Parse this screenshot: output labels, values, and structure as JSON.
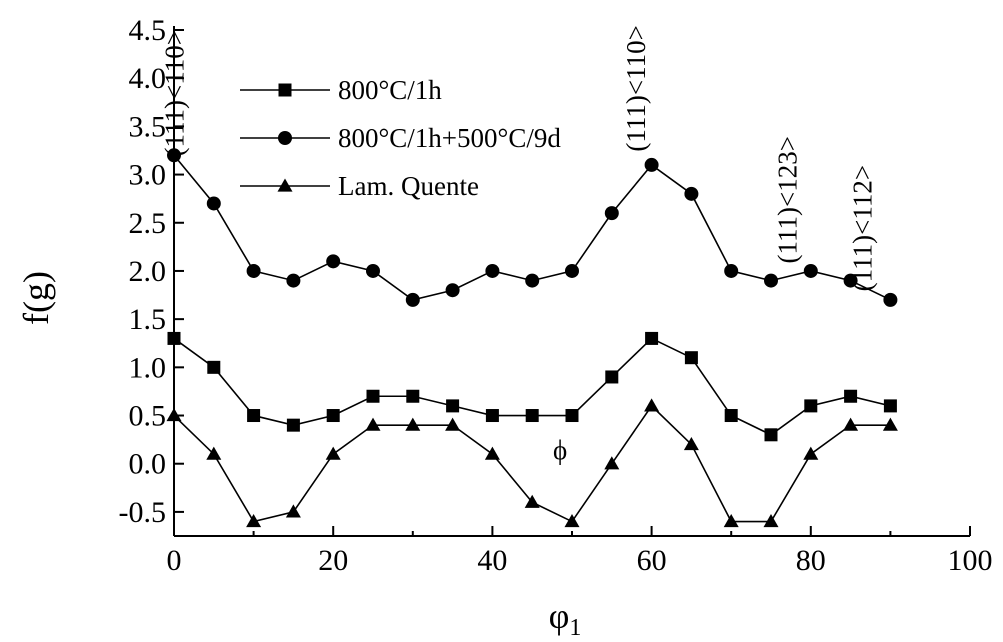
{
  "chart_data": {
    "type": "line",
    "xlabel": "φ",
    "xlabel_sub": "1",
    "ylabel": "f(g)",
    "xlim": [
      0,
      100
    ],
    "ylim": [
      -0.75,
      4.5
    ],
    "xticks": [
      0,
      20,
      40,
      60,
      80,
      100
    ],
    "xtick_labels": [
      "0",
      "20",
      "40",
      "60",
      "80",
      "100"
    ],
    "yticks": [
      -0.5,
      0.0,
      0.5,
      1.0,
      1.5,
      2.0,
      2.5,
      3.0,
      3.5,
      4.0,
      4.5
    ],
    "ytick_labels": [
      "-0.5",
      "0.0",
      "0.5",
      "1.0",
      "1.5",
      "2.0",
      "2.5",
      "3.0",
      "3.5",
      "4.0",
      "4.5"
    ],
    "grid": false,
    "legend_position": "top-left",
    "series": [
      {
        "name": "800°C/1h",
        "marker": "square",
        "x": [
          0,
          5,
          10,
          15,
          20,
          25,
          30,
          35,
          40,
          45,
          50,
          55,
          60,
          65,
          70,
          75,
          80,
          85,
          90
        ],
        "y": [
          1.3,
          1.0,
          0.5,
          0.4,
          0.5,
          0.7,
          0.7,
          0.6,
          0.5,
          0.5,
          0.5,
          0.9,
          1.3,
          1.1,
          0.5,
          0.3,
          0.6,
          0.7,
          0.6
        ]
      },
      {
        "name": "800°C/1h+500°C/9d",
        "marker": "circle",
        "x": [
          0,
          5,
          10,
          15,
          20,
          25,
          30,
          35,
          40,
          45,
          50,
          55,
          60,
          65,
          70,
          75,
          80,
          85,
          90
        ],
        "y": [
          3.2,
          2.7,
          2.0,
          1.9,
          2.1,
          2.0,
          1.7,
          1.8,
          2.0,
          1.9,
          2.0,
          2.6,
          3.1,
          2.8,
          2.0,
          1.9,
          2.0,
          1.9,
          1.7
        ]
      },
      {
        "name": "Lam. Quente",
        "marker": "triangle",
        "x": [
          0,
          5,
          10,
          15,
          20,
          25,
          30,
          35,
          40,
          45,
          50,
          55,
          60,
          65,
          70,
          75,
          80,
          85,
          90
        ],
        "y": [
          0.5,
          0.1,
          -0.6,
          -0.5,
          0.1,
          0.4,
          0.4,
          0.4,
          0.1,
          -0.4,
          -0.6,
          0.0,
          0.6,
          0.2,
          -0.6,
          -0.6,
          0.1,
          0.4,
          0.4
        ]
      }
    ],
    "annotations": [
      {
        "text": "(111)<110>",
        "x": 1.2,
        "y": 4.5
      },
      {
        "text": "(111)<110>",
        "x": 59.2,
        "y": 4.55
      },
      {
        "text": "(111)<123>",
        "x": 78.2,
        "y": 3.4
      },
      {
        "text": "(111)<112>",
        "x": 87.6,
        "y": 3.1
      },
      {
        "text": "ϕ",
        "x": 48.5,
        "y": 0.05
      }
    ]
  }
}
